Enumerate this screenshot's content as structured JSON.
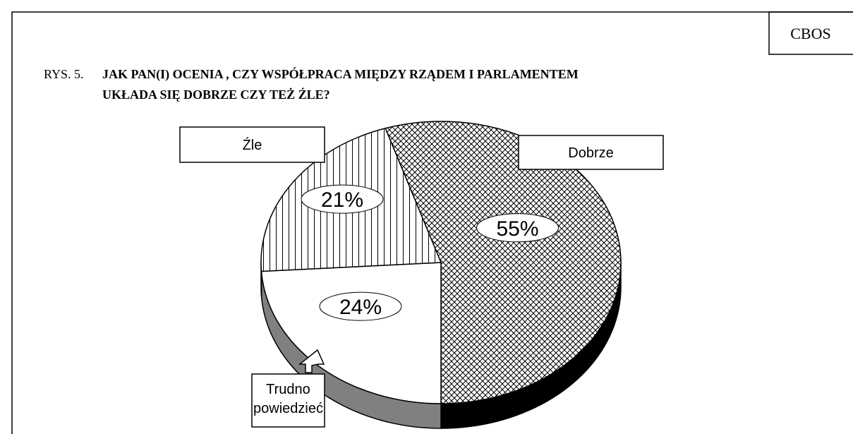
{
  "chart_data": {
    "type": "pie",
    "source": "CBOS",
    "figure_label": "RYS. 5.",
    "title": [
      "JAK PAN(I) OCENIA , CZY WSPÓŁPRACA MIĘDZY RZĄDEM I PARLAMENTEM",
      "UKŁADA SIĘ DOBRZE CZY TEŻ ŹLE?"
    ],
    "categories": [
      "Dobrze",
      [
        "Trudno",
        "powiedzieć"
      ],
      "Źle"
    ],
    "values": [
      55,
      24,
      21
    ],
    "value_labels": [
      "55%",
      "24%",
      "21%"
    ],
    "patterns": [
      "crosshatch",
      "none",
      "vertical-lines"
    ],
    "side_colors": [
      "#000000",
      "#808080",
      "#ffffff"
    ]
  }
}
